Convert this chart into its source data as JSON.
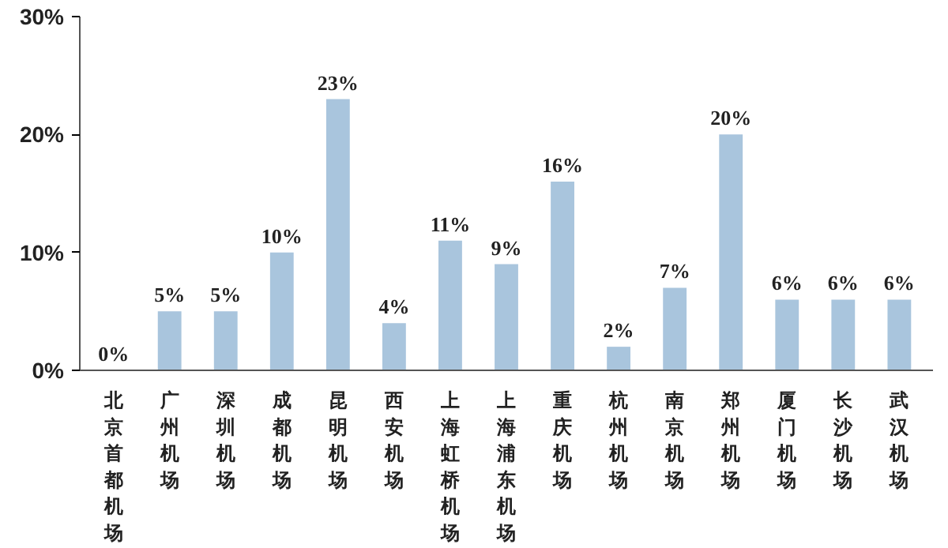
{
  "chart_data": {
    "type": "bar",
    "categories": [
      "北京首都机场",
      "广州机场",
      "深圳机场",
      "成都机场",
      "昆明机场",
      "西安机场",
      "上海虹桥机场",
      "上海浦东机场",
      "重庆机场",
      "杭州机场",
      "南京机场",
      "郑州机场",
      "厦门机场",
      "长沙机场",
      "武汉机场"
    ],
    "values": [
      0,
      5,
      5,
      10,
      23,
      4,
      11,
      9,
      16,
      2,
      7,
      20,
      6,
      6,
      6
    ],
    "color": "#a9c5dd",
    "ylim": [
      0,
      30
    ],
    "yticks": [
      {
        "value": 0,
        "label": "0%"
      },
      {
        "value": 10,
        "label": "10%"
      },
      {
        "value": 20,
        "label": "20%"
      },
      {
        "value": 30,
        "label": "30%"
      }
    ],
    "value_labels": [
      "0%",
      "5%",
      "5%",
      "10%",
      "23%",
      "4%",
      "11%",
      "9%",
      "16%",
      "2%",
      "7%",
      "20%",
      "6%",
      "6%",
      "6%"
    ],
    "grid": false
  }
}
